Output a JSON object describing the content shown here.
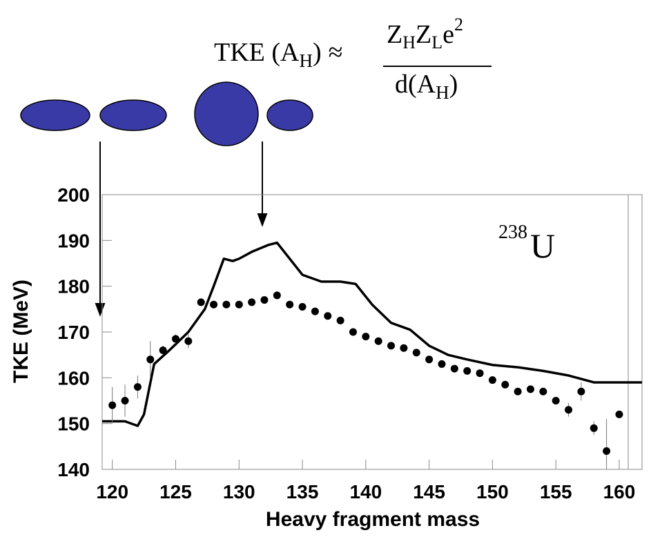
{
  "chart_data": {
    "type": "line",
    "xlabel": "Heavy fragment mass",
    "ylabel": "TKE (MeV)",
    "xlim": [
      119.2,
      161.8
    ],
    "xticks": [
      120,
      125,
      130,
      135,
      140,
      145,
      150,
      155,
      160
    ],
    "ylim": [
      140,
      200
    ],
    "yticks": [
      140,
      150,
      160,
      170,
      180,
      190,
      200
    ],
    "annotations": {
      "formula": {
        "lhs": "TKE (A",
        "lhs_sub": "H",
        "lhs_end": ")",
        "approx": "≈",
        "numerator": [
          "Z",
          "H",
          "Z",
          "L",
          "e",
          "2"
        ],
        "denominator": [
          "d(A",
          "H",
          ")"
        ]
      },
      "isotope": {
        "mass": "238",
        "symbol": "U"
      }
    },
    "series": [
      {
        "type": "line",
        "color": "#000000",
        "x": [
          119.2,
          121,
          122,
          122.5,
          123.3,
          124.5,
          126,
          127.3,
          128,
          128.8,
          129.5,
          130,
          131,
          132.3,
          133,
          134,
          135,
          136.5,
          138,
          139.2,
          140.5,
          142,
          143.5,
          145,
          146.5,
          148,
          150,
          152,
          154,
          156,
          158,
          160,
          161.8
        ],
        "values": [
          150.5,
          150.5,
          149.5,
          152,
          163,
          166,
          170,
          175,
          180,
          186,
          185.5,
          186,
          187.5,
          189,
          189.5,
          186,
          182.5,
          181,
          181,
          180.5,
          176,
          172,
          170.5,
          167,
          165,
          164,
          162.8,
          162.3,
          161.5,
          160.5,
          159,
          159,
          159
        ]
      },
      {
        "type": "scatter",
        "color": "#000000",
        "x": [
          120,
          121,
          122,
          123,
          124,
          125,
          126,
          127,
          128,
          129,
          130,
          131,
          132,
          133,
          134,
          135,
          136,
          137,
          138,
          139,
          140,
          141,
          142,
          143,
          144,
          145,
          146,
          147,
          148,
          149,
          150,
          151,
          152,
          153,
          154,
          155,
          156,
          157,
          158,
          159,
          160
        ],
        "values": [
          154,
          155,
          158,
          164,
          166,
          168.5,
          168,
          176.5,
          176,
          176,
          176,
          176.5,
          177,
          178,
          176,
          175.5,
          174.5,
          173.5,
          172.5,
          170,
          169,
          168,
          167,
          166.5,
          165.5,
          164,
          163,
          162,
          161.5,
          161,
          159.5,
          158.5,
          157,
          157.5,
          157,
          155,
          153,
          157,
          149,
          144,
          152
        ],
        "errors": [
          4,
          3.5,
          2.5,
          4,
          1,
          1,
          1.5,
          0.5,
          0.5,
          0.5,
          0.5,
          0.5,
          0.5,
          0.5,
          0.5,
          0.5,
          0.5,
          0.5,
          0.5,
          0.5,
          0.5,
          0.5,
          0.5,
          0.5,
          0.5,
          0.5,
          0.5,
          0.5,
          0.5,
          0.5,
          0.5,
          0.5,
          0.5,
          0.5,
          0.5,
          0.5,
          1.5,
          2,
          1.5,
          7,
          0.5
        ]
      }
    ]
  }
}
